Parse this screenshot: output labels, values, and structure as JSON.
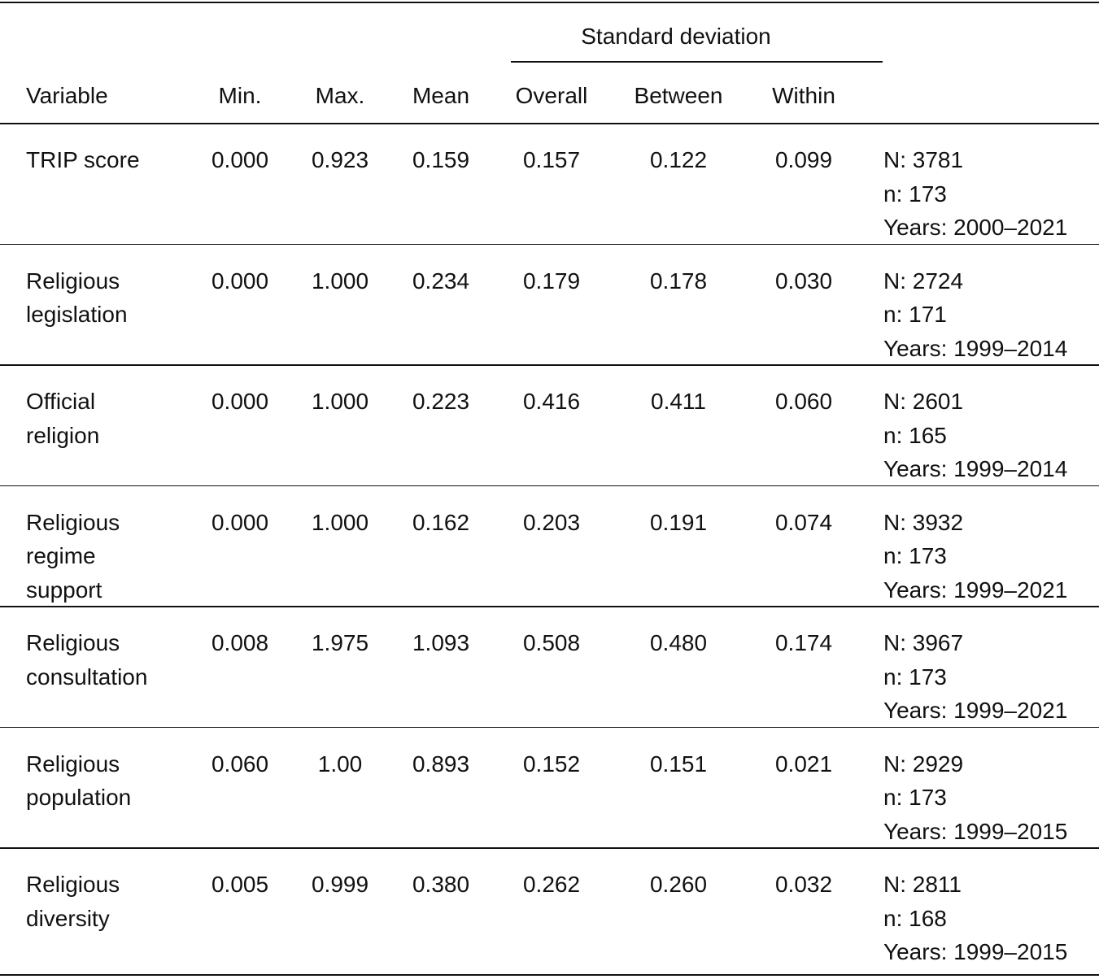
{
  "table": {
    "group_header": "Standard deviation",
    "columns": [
      "Variable",
      "Min.",
      "Max.",
      "Mean",
      "Overall",
      "Between",
      "Within"
    ],
    "rows": [
      {
        "variable": [
          "TRIP score"
        ],
        "cells": [
          "0.000",
          "0.923",
          "0.159",
          "0.157",
          "0.122",
          "0.099"
        ],
        "notes": [
          "N: 3781",
          "n: 173",
          "Years: 2000–2021"
        ]
      },
      {
        "variable": [
          "Religious",
          "legislation"
        ],
        "cells": [
          "0.000",
          "1.000",
          "0.234",
          "0.179",
          "0.178",
          "0.030"
        ],
        "notes": [
          "N: 2724",
          "n: 171",
          "Years: 1999–2014"
        ]
      },
      {
        "variable": [
          "Official",
          "religion"
        ],
        "cells": [
          "0.000",
          "1.000",
          "0.223",
          "0.416",
          "0.411",
          "0.060"
        ],
        "notes": [
          "N: 2601",
          "n: 165",
          "Years: 1999–2014"
        ]
      },
      {
        "variable": [
          "Religious",
          "regime",
          "support"
        ],
        "cells": [
          "0.000",
          "1.000",
          "0.162",
          "0.203",
          "0.191",
          "0.074"
        ],
        "notes": [
          "N: 3932",
          "n: 173",
          "Years: 1999–2021"
        ]
      },
      {
        "variable": [
          "Religious",
          "consultation"
        ],
        "cells": [
          "0.008",
          "1.975",
          "1.093",
          "0.508",
          "0.480",
          "0.174"
        ],
        "notes": [
          "N: 3967",
          "n: 173",
          "Years: 1999–2021"
        ]
      },
      {
        "variable": [
          "Religious",
          "population"
        ],
        "cells": [
          "0.060",
          "1.00",
          "0.893",
          "0.152",
          "0.151",
          "0.021"
        ],
        "notes": [
          "N: 2929",
          "n: 173",
          "Years: 1999–2015"
        ]
      },
      {
        "variable": [
          "Religious",
          "diversity"
        ],
        "cells": [
          "0.005",
          "0.999",
          "0.380",
          "0.262",
          "0.260",
          "0.032"
        ],
        "notes": [
          "N: 2811",
          "n: 168",
          "Years: 1999–2015"
        ]
      }
    ]
  }
}
